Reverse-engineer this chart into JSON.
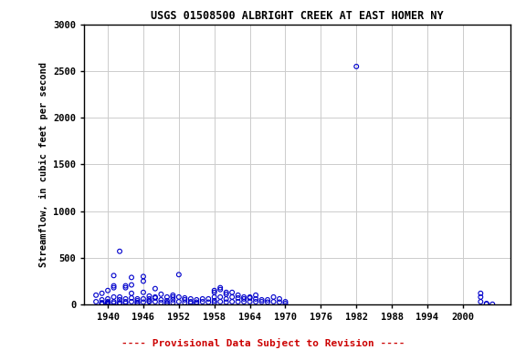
{
  "title": "USGS 01508500 ALBRIGHT CREEK AT EAST HOMER NY",
  "ylabel": "Streamflow, in cubic feet per second",
  "xlabel": "",
  "subtitle": "---- Provisional Data Subject to Revision ----",
  "subtitle_color": "#cc0000",
  "xlim": [
    1936,
    2008
  ],
  "ylim": [
    0,
    3000
  ],
  "xticks": [
    1940,
    1946,
    1952,
    1958,
    1964,
    1970,
    1976,
    1982,
    1988,
    1994,
    2000
  ],
  "yticks": [
    0,
    500,
    1000,
    1500,
    2000,
    2500,
    3000
  ],
  "data_color": "#0000cc",
  "background_color": "#ffffff",
  "grid_color": "#cccccc",
  "x": [
    1938,
    1938,
    1939,
    1939,
    1939,
    1939,
    1939,
    1940,
    1940,
    1940,
    1940,
    1940,
    1940,
    1940,
    1941,
    1941,
    1941,
    1941,
    1941,
    1941,
    1942,
    1942,
    1942,
    1942,
    1942,
    1943,
    1943,
    1943,
    1943,
    1943,
    1944,
    1944,
    1944,
    1944,
    1944,
    1945,
    1945,
    1945,
    1945,
    1946,
    1946,
    1946,
    1946,
    1946,
    1947,
    1947,
    1947,
    1947,
    1948,
    1948,
    1948,
    1948,
    1949,
    1949,
    1949,
    1950,
    1950,
    1950,
    1950,
    1951,
    1951,
    1951,
    1951,
    1952,
    1952,
    1952,
    1953,
    1953,
    1953,
    1954,
    1954,
    1954,
    1955,
    1955,
    1955,
    1956,
    1956,
    1957,
    1957,
    1958,
    1958,
    1958,
    1958,
    1958,
    1959,
    1959,
    1959,
    1959,
    1960,
    1960,
    1960,
    1960,
    1961,
    1961,
    1961,
    1962,
    1962,
    1962,
    1963,
    1963,
    1963,
    1964,
    1964,
    1964,
    1965,
    1965,
    1965,
    1966,
    1966,
    1967,
    1967,
    1968,
    1968,
    1969,
    1969,
    1970,
    1970,
    1982,
    2003,
    2003,
    2003,
    2004,
    2004,
    2005
  ],
  "y": [
    100,
    30,
    120,
    50,
    20,
    10,
    5,
    60,
    150,
    30,
    20,
    10,
    5,
    3,
    310,
    200,
    180,
    80,
    30,
    15,
    570,
    80,
    50,
    20,
    10,
    180,
    200,
    60,
    30,
    15,
    290,
    120,
    210,
    70,
    30,
    60,
    40,
    20,
    10,
    300,
    250,
    130,
    60,
    25,
    40,
    90,
    60,
    30,
    80,
    170,
    70,
    30,
    110,
    50,
    20,
    80,
    40,
    20,
    10,
    100,
    80,
    50,
    20,
    320,
    80,
    30,
    70,
    50,
    20,
    60,
    30,
    15,
    50,
    25,
    10,
    60,
    30,
    60,
    25,
    150,
    130,
    80,
    40,
    20,
    160,
    180,
    80,
    30,
    110,
    130,
    60,
    25,
    130,
    80,
    30,
    100,
    70,
    30,
    60,
    80,
    30,
    70,
    80,
    30,
    60,
    100,
    30,
    50,
    30,
    50,
    25,
    80,
    30,
    60,
    25,
    30,
    10,
    2550,
    120,
    80,
    30,
    10,
    5,
    3
  ]
}
